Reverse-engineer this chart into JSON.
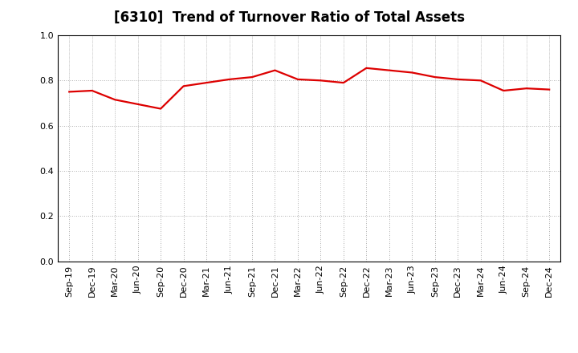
{
  "title": "[6310]  Trend of Turnover Ratio of Total Assets",
  "x_labels": [
    "Sep-19",
    "Dec-19",
    "Mar-20",
    "Jun-20",
    "Sep-20",
    "Dec-20",
    "Mar-21",
    "Jun-21",
    "Sep-21",
    "Dec-21",
    "Mar-22",
    "Jun-22",
    "Sep-22",
    "Dec-22",
    "Mar-23",
    "Jun-23",
    "Sep-23",
    "Dec-23",
    "Mar-24",
    "Jun-24",
    "Sep-24",
    "Dec-24"
  ],
  "y_values": [
    0.75,
    0.755,
    0.715,
    0.695,
    0.675,
    0.775,
    0.79,
    0.805,
    0.815,
    0.845,
    0.805,
    0.8,
    0.79,
    0.855,
    0.845,
    0.835,
    0.815,
    0.805,
    0.8,
    0.755,
    0.765,
    0.76
  ],
  "ylim": [
    0.0,
    1.0
  ],
  "yticks": [
    0.0,
    0.2,
    0.4,
    0.6,
    0.8,
    1.0
  ],
  "line_color": "#dd0000",
  "line_width": 1.6,
  "background_color": "#ffffff",
  "grid_color": "#999999",
  "title_fontsize": 12,
  "tick_fontsize": 8
}
